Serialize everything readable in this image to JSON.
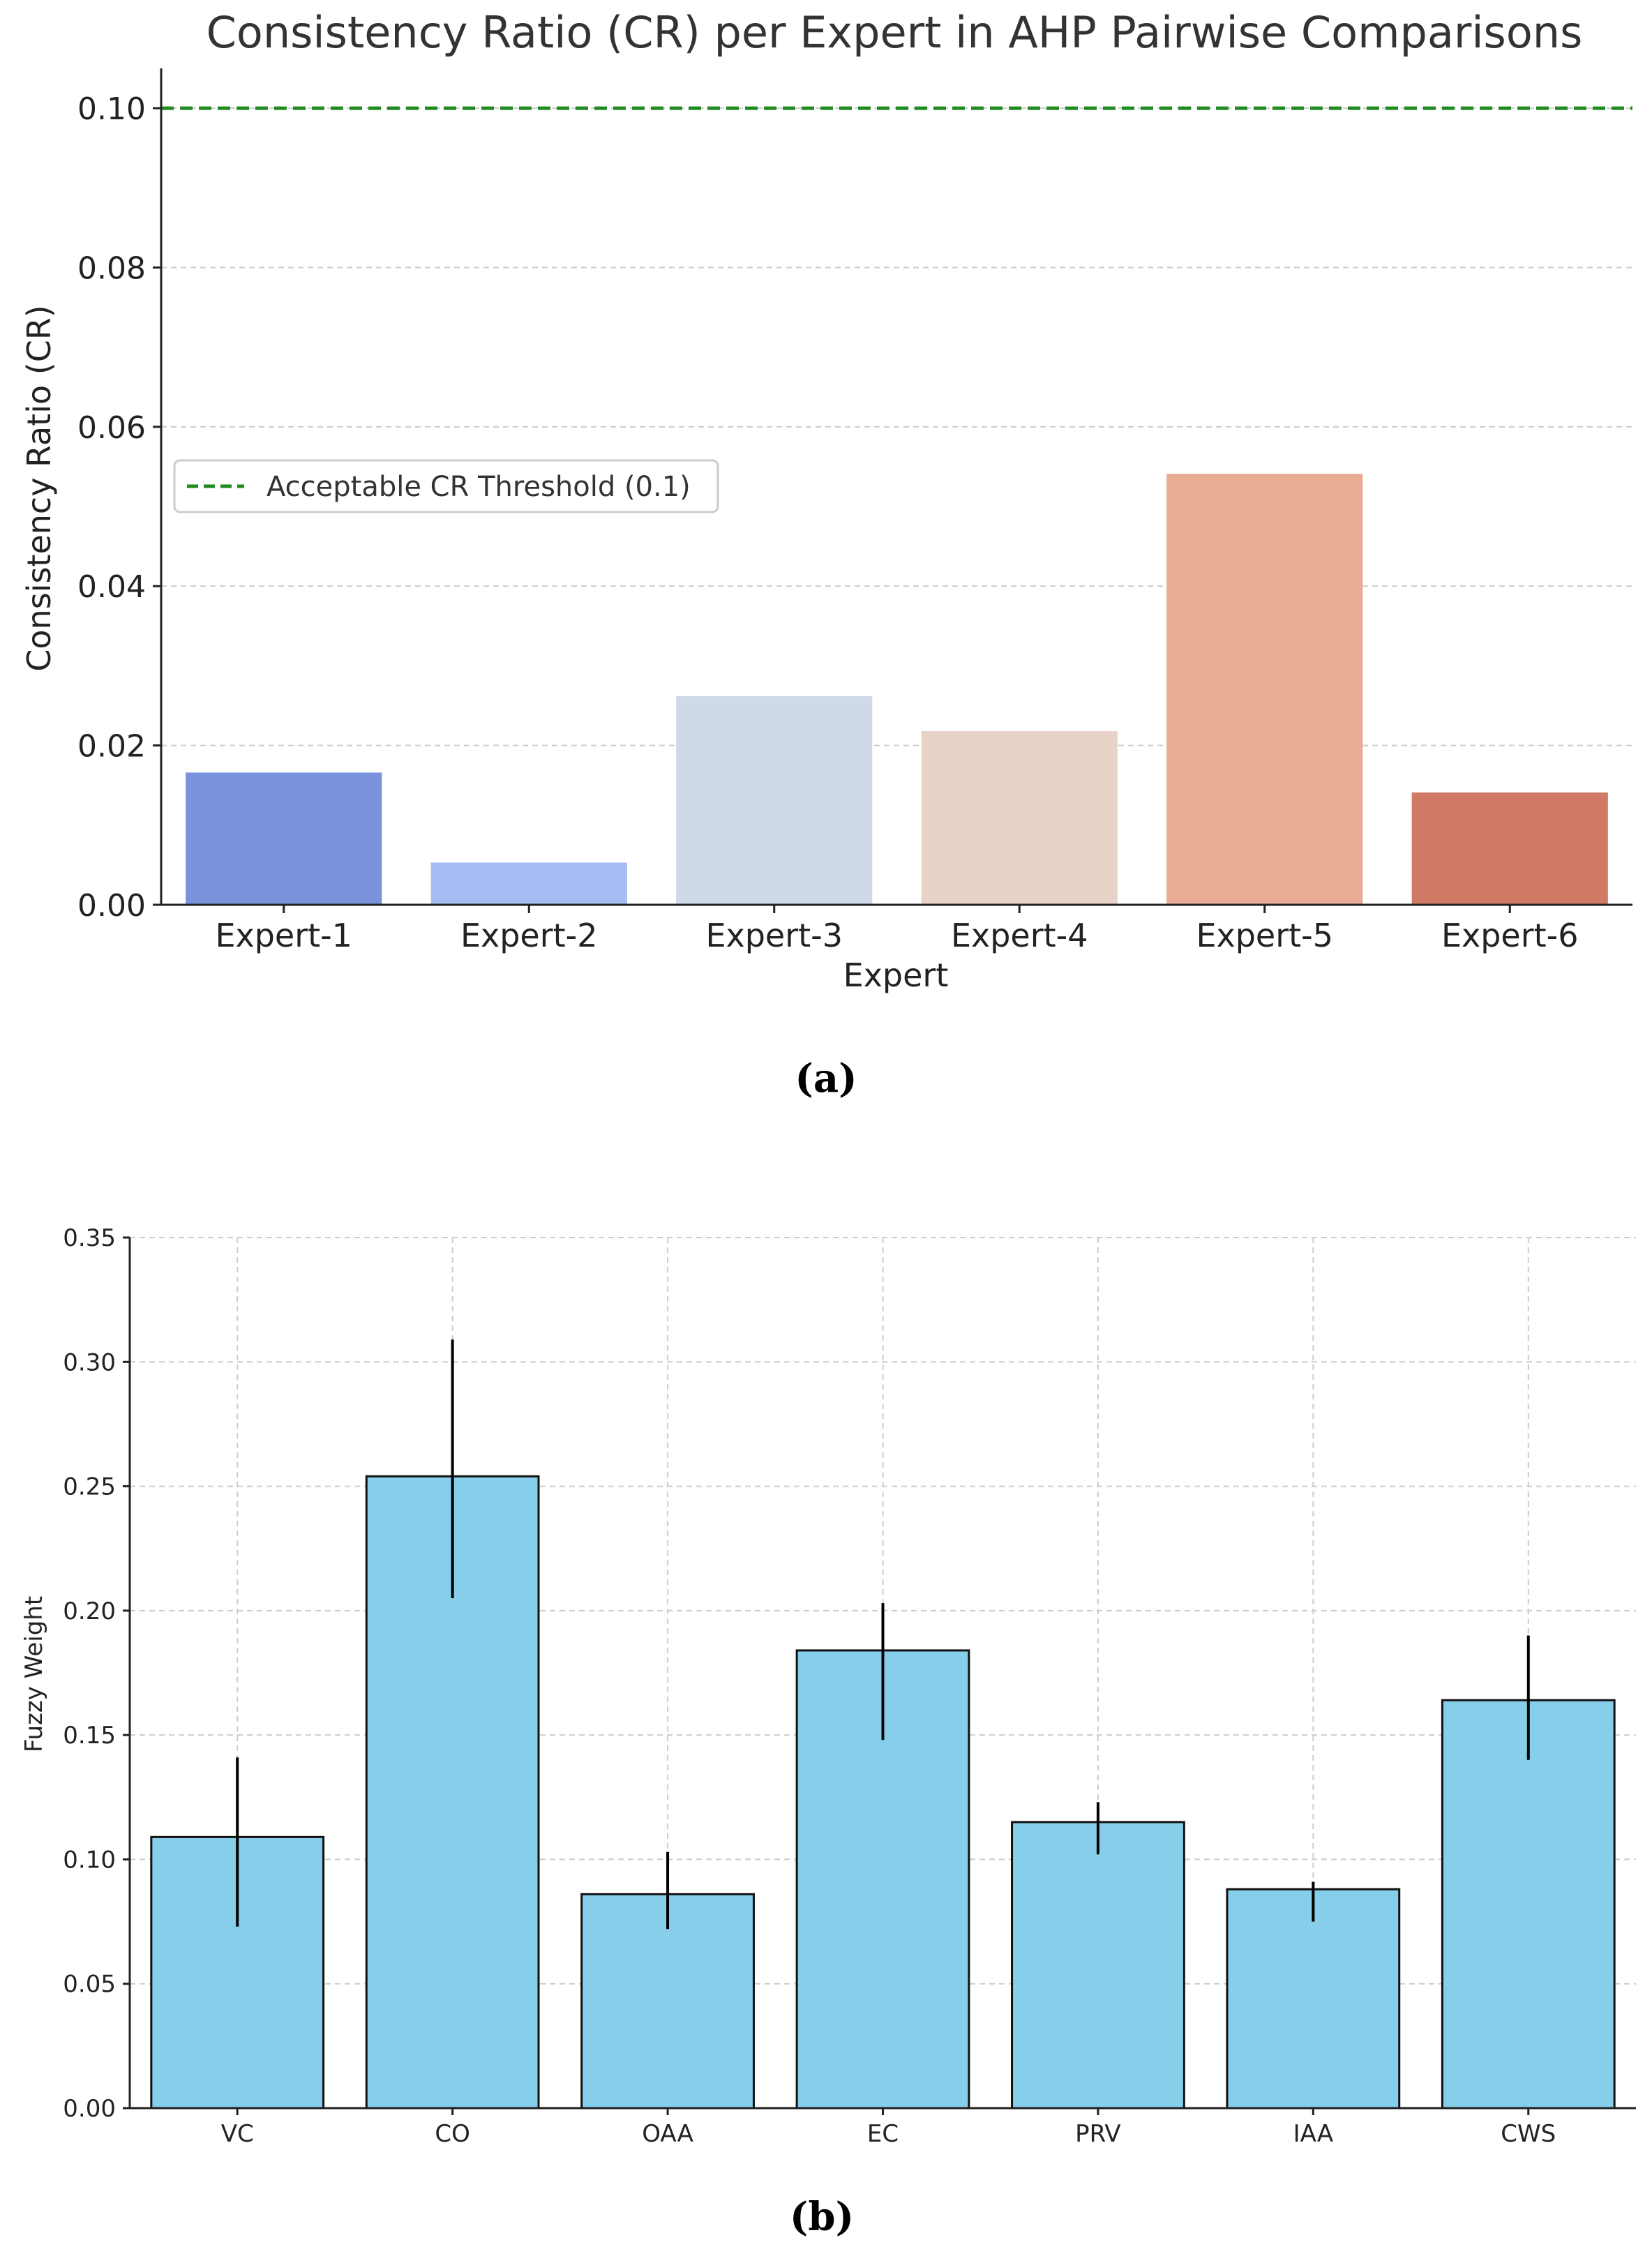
{
  "chart_data": [
    {
      "type": "bar",
      "title": "Consistency Ratio (CR) per Expert in AHP Pairwise Comparisons",
      "xlabel": "Expert",
      "ylabel": "Consistency Ratio (CR)",
      "categories": [
        "Expert-1",
        "Expert-2",
        "Expert-3",
        "Expert-4",
        "Expert-5",
        "Expert-6"
      ],
      "values": [
        0.0166,
        0.0053,
        0.0262,
        0.0218,
        0.0541,
        0.0141
      ],
      "bar_colors": [
        "#7994dc",
        "#a5bdf2",
        "#cfd9ea",
        "#e8d3c9",
        "#e8ac94",
        "#d07a66"
      ],
      "ylim": [
        0,
        0.105
      ],
      "yticks": [
        "0.00",
        "0.02",
        "0.04",
        "0.06",
        "0.08",
        "0.10"
      ],
      "ytick_values": [
        0,
        0.02,
        0.04,
        0.06,
        0.08,
        0.1
      ],
      "grid": "horizontal-dashed",
      "threshold": {
        "value": 0.1,
        "label": "Acceptable CR Threshold (0.1)",
        "color": "#1f8a1f"
      },
      "legend_position": "center-left",
      "panel_label": "(a)"
    },
    {
      "type": "bar",
      "title": "",
      "xlabel": "",
      "ylabel": "Fuzzy Weight",
      "categories": [
        "VC",
        "CO",
        "OAA",
        "EC",
        "PRV",
        "IAA",
        "CWS"
      ],
      "values": [
        0.109,
        0.254,
        0.086,
        0.184,
        0.115,
        0.088,
        0.164
      ],
      "error_low": [
        0.073,
        0.205,
        0.072,
        0.148,
        0.102,
        0.075,
        0.14
      ],
      "error_high": [
        0.141,
        0.309,
        0.103,
        0.203,
        0.123,
        0.091,
        0.19
      ],
      "bar_color": "#87ceeb",
      "ylim": [
        0,
        0.35
      ],
      "yticks": [
        "0.00",
        "0.05",
        "0.10",
        "0.15",
        "0.20",
        "0.25",
        "0.30",
        "0.35"
      ],
      "ytick_values": [
        0,
        0.05,
        0.1,
        0.15,
        0.2,
        0.25,
        0.3,
        0.35
      ],
      "grid": "both-dashed",
      "panel_label": "(b)"
    }
  ]
}
